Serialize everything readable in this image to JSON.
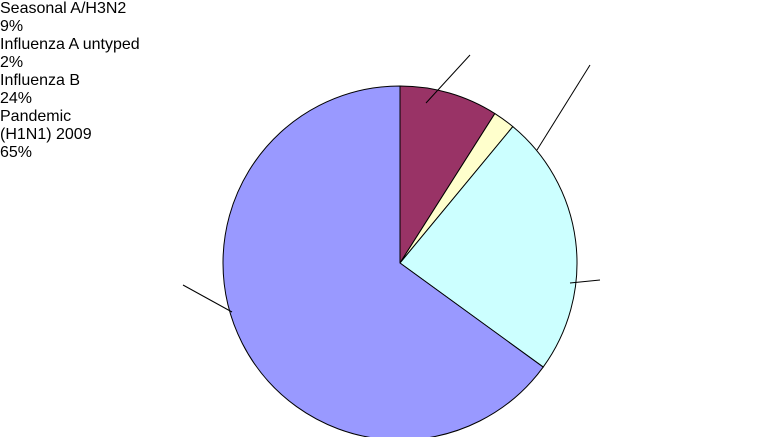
{
  "chart_data": {
    "type": "pie",
    "categories": [
      "Seasonal A/H3N2",
      "Influenza A untyped",
      "Influenza B",
      "Pandemic (H1N1) 2009"
    ],
    "values": [
      9,
      2,
      24,
      65
    ],
    "value_labels": [
      "9%",
      "2%",
      "24%",
      "65%"
    ],
    "colors": [
      "#993366",
      "#ffffcc",
      "#ccffff",
      "#9999ff"
    ]
  }
}
